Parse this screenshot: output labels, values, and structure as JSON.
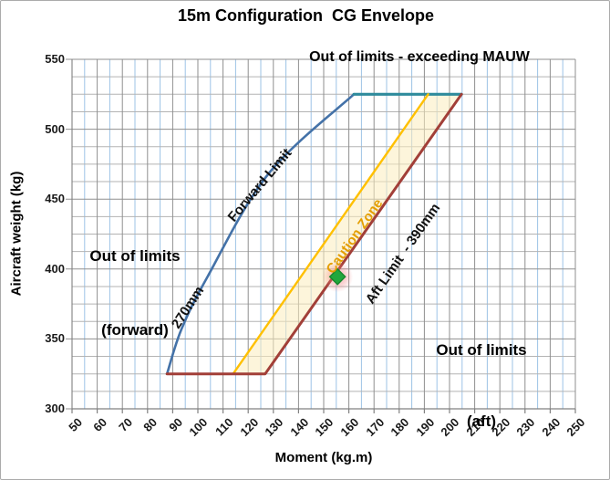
{
  "title": "15m Configuration  CG Envelope",
  "chart_data": {
    "type": "line",
    "title": "15m Configuration  CG Envelope",
    "xlabel": "Moment (kg.m)",
    "ylabel": "Aircraft weight (kg)",
    "xlim": [
      50,
      250
    ],
    "ylim": [
      300,
      550
    ],
    "x_major": 10,
    "x_minor": 5,
    "y_major": 50,
    "y_minor": 12.5,
    "grid": "on",
    "legend_position": "none",
    "series": [
      {
        "name": "Forward Limit (270mm)",
        "color": "#4472a8",
        "width": 2.6,
        "smooth": true,
        "points": [
          [
            87.75,
            325
          ],
          [
            93.5,
            357
          ],
          [
            104,
            395
          ],
          [
            128,
            468
          ],
          [
            162,
            525
          ]
        ]
      },
      {
        "name": "MAUW Limit (525 kg)",
        "color": "#2e8b9c",
        "width": 3.2,
        "smooth": false,
        "points": [
          [
            162,
            525
          ],
          [
            204.75,
            525
          ]
        ]
      },
      {
        "name": "Caution Zone Boundary",
        "color": "#ffc000",
        "width": 2.4,
        "smooth": false,
        "points": [
          [
            114,
            325
          ],
          [
            191.5,
            525
          ]
        ]
      },
      {
        "name": "Aft Limit - 390mm",
        "color": "#a23f38",
        "width": 3,
        "smooth": false,
        "points": [
          [
            87.75,
            325
          ],
          [
            126.75,
            325
          ],
          [
            204.75,
            525
          ]
        ]
      }
    ],
    "caution_zone": {
      "polygon": [
        [
          114,
          325
        ],
        [
          126.75,
          325
        ],
        [
          204.75,
          525
        ],
        [
          191.5,
          525
        ]
      ],
      "fill": "#fbedbe",
      "opacity": 0.55
    },
    "cg_point": {
      "x": 155.5,
      "y": 394.5,
      "marker": "diamond",
      "fill": "#21a73d",
      "stroke": "#17862c",
      "glow_color": "#f08080"
    },
    "layout": {
      "axis_color": "#808080",
      "grid_major_color": "#8f8f8f",
      "grid_minor_h_color": "#b3b3b3",
      "grid_minor_v_color": "#9dc3e6"
    }
  },
  "annotations": {
    "out_mauw": "Out of limits - exceeding MAUW",
    "out_forward_line1": "Out of limits",
    "out_forward_line2": "(forward)",
    "out_aft_line1": "Out of limits",
    "out_aft_line2": "(aft)",
    "forward_limit_label": "Forward Limit",
    "arm_270_label": "270mm",
    "caution_zone_label": "Caution Zone",
    "aft_limit_label": "Aft Limit  - 390mm"
  }
}
